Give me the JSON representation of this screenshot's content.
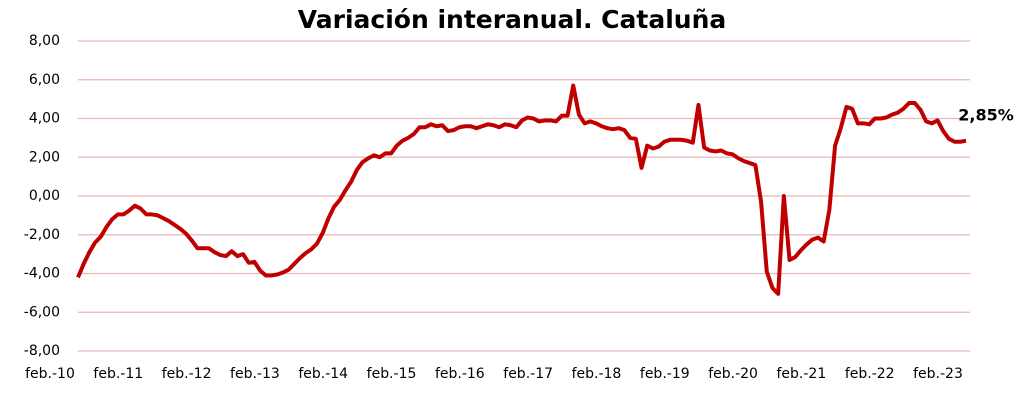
{
  "chart_data": {
    "type": "line",
    "title": "Variación interanual. Cataluña",
    "categories": [
      "feb.-10",
      null,
      null,
      null,
      null,
      null,
      null,
      null,
      null,
      null,
      null,
      null,
      "feb.-11",
      null,
      null,
      null,
      null,
      null,
      null,
      null,
      null,
      null,
      null,
      null,
      "feb.-12",
      null,
      null,
      null,
      null,
      null,
      null,
      null,
      null,
      null,
      null,
      null,
      "feb.-13",
      null,
      null,
      null,
      null,
      null,
      null,
      null,
      null,
      null,
      null,
      null,
      "feb.-14",
      null,
      null,
      null,
      null,
      null,
      null,
      null,
      null,
      null,
      null,
      null,
      "feb.-15",
      null,
      null,
      null,
      null,
      null,
      null,
      null,
      null,
      null,
      null,
      null,
      "feb.-16",
      null,
      null,
      null,
      null,
      null,
      null,
      null,
      null,
      null,
      null,
      null,
      "feb.-17",
      null,
      null,
      null,
      null,
      null,
      null,
      null,
      null,
      null,
      null,
      null,
      "feb.-18",
      null,
      null,
      null,
      null,
      null,
      null,
      null,
      null,
      null,
      null,
      null,
      "feb.-19",
      null,
      null,
      null,
      null,
      null,
      null,
      null,
      null,
      null,
      null,
      null,
      "feb.-20",
      null,
      null,
      null,
      null,
      null,
      null,
      null,
      null,
      null,
      null,
      null,
      "feb.-21",
      null,
      null,
      null,
      null,
      null,
      null,
      null,
      null,
      null,
      null,
      null,
      "feb.-22",
      null,
      null,
      null,
      null,
      null,
      null,
      null,
      null,
      null,
      null,
      null,
      "feb.-23"
    ],
    "series": [
      {
        "color": "#c00000",
        "values": [
          -4.2,
          -3.5,
          -2.9,
          -2.4,
          -2.1,
          -1.6,
          -1.2,
          -0.95,
          -0.95,
          -0.75,
          -0.5,
          -0.65,
          -0.95,
          -0.95,
          -1.0,
          -1.15,
          -1.3,
          -1.5,
          -1.7,
          -1.95,
          -2.3,
          -2.7,
          -2.7,
          -2.7,
          -2.9,
          -3.05,
          -3.1,
          -2.85,
          -3.1,
          -3.0,
          -3.45,
          -3.4,
          -3.85,
          -4.1,
          -4.1,
          -4.05,
          -3.95,
          -3.8,
          -3.5,
          -3.2,
          -2.95,
          -2.75,
          -2.45,
          -1.9,
          -1.15,
          -0.55,
          -0.2,
          0.3,
          0.75,
          1.35,
          1.75,
          1.95,
          2.1,
          2.0,
          2.2,
          2.2,
          2.6,
          2.85,
          3.0,
          3.2,
          3.55,
          3.55,
          3.7,
          3.6,
          3.65,
          3.35,
          3.4,
          3.55,
          3.6,
          3.6,
          3.5,
          3.6,
          3.7,
          3.65,
          3.55,
          3.7,
          3.65,
          3.55,
          3.9,
          4.05,
          4.0,
          3.85,
          3.9,
          3.9,
          3.85,
          4.15,
          4.15,
          5.7,
          4.2,
          3.75,
          3.85,
          3.75,
          3.6,
          3.5,
          3.45,
          3.5,
          3.4,
          3.0,
          2.95,
          1.45,
          2.6,
          2.45,
          2.55,
          2.8,
          2.9,
          2.9,
          2.9,
          2.85,
          2.75,
          4.7,
          2.5,
          2.35,
          2.3,
          2.35,
          2.2,
          2.15,
          1.95,
          1.8,
          1.7,
          1.6,
          -0.3,
          -3.9,
          -4.75,
          -5.05,
          0.0,
          -3.3,
          -3.15,
          -2.8,
          -2.5,
          -2.25,
          -2.15,
          -2.35,
          -0.7,
          2.6,
          3.5,
          4.6,
          4.5,
          3.75,
          3.75,
          3.7,
          4.0,
          4.0,
          4.05,
          4.2,
          4.3,
          4.5,
          4.8,
          4.8,
          4.45,
          3.85,
          3.75,
          3.9,
          3.35,
          2.95,
          2.8,
          2.8,
          2.85
        ],
        "value_labels": [
          null,
          null,
          null,
          null,
          null,
          null,
          null,
          null,
          null,
          null,
          null,
          null,
          null,
          null,
          null,
          null,
          null,
          null,
          null,
          null,
          null,
          null,
          null,
          null,
          null,
          null,
          null,
          null,
          null,
          null,
          null,
          null,
          null,
          null,
          null,
          null,
          null,
          null,
          null,
          null,
          null,
          null,
          null,
          null,
          null,
          null,
          null,
          null,
          null,
          null,
          null,
          null,
          null,
          null,
          null,
          null,
          null,
          null,
          null,
          null,
          null,
          null,
          null,
          null,
          null,
          null,
          null,
          null,
          null,
          null,
          null,
          null,
          null,
          null,
          null,
          null,
          null,
          null,
          null,
          null,
          null,
          null,
          null,
          null,
          null,
          null,
          null,
          null,
          null,
          null,
          null,
          null,
          null,
          null,
          null,
          null,
          null,
          null,
          null,
          null,
          null,
          null,
          null,
          null,
          null,
          null,
          null,
          null,
          null,
          null,
          null,
          null,
          null,
          null,
          null,
          null,
          null,
          null,
          null,
          null,
          null,
          null,
          null,
          null,
          null,
          null,
          null,
          null,
          null,
          null,
          null,
          null,
          null,
          null,
          null,
          null,
          null,
          null,
          null,
          null,
          null,
          null,
          null,
          null,
          null,
          null,
          null,
          null,
          null,
          null,
          null,
          null,
          null,
          null,
          null,
          null,
          "2,85%"
        ]
      }
    ],
    "ylim": [
      -8,
      8
    ],
    "yticks": [
      {
        "value": -8,
        "label": "-8,00"
      },
      {
        "value": -6,
        "label": "-6,00"
      },
      {
        "value": -4,
        "label": "-4,00"
      },
      {
        "value": -2,
        "label": "-2,00"
      },
      {
        "value": 0,
        "label": "0,00"
      },
      {
        "value": 2,
        "label": "2,00"
      },
      {
        "value": 4,
        "label": "4,00"
      },
      {
        "value": 6,
        "label": "6,00"
      },
      {
        "value": 8,
        "label": "8,00"
      }
    ],
    "grid": true,
    "grid_color": "#e6b8b7"
  }
}
